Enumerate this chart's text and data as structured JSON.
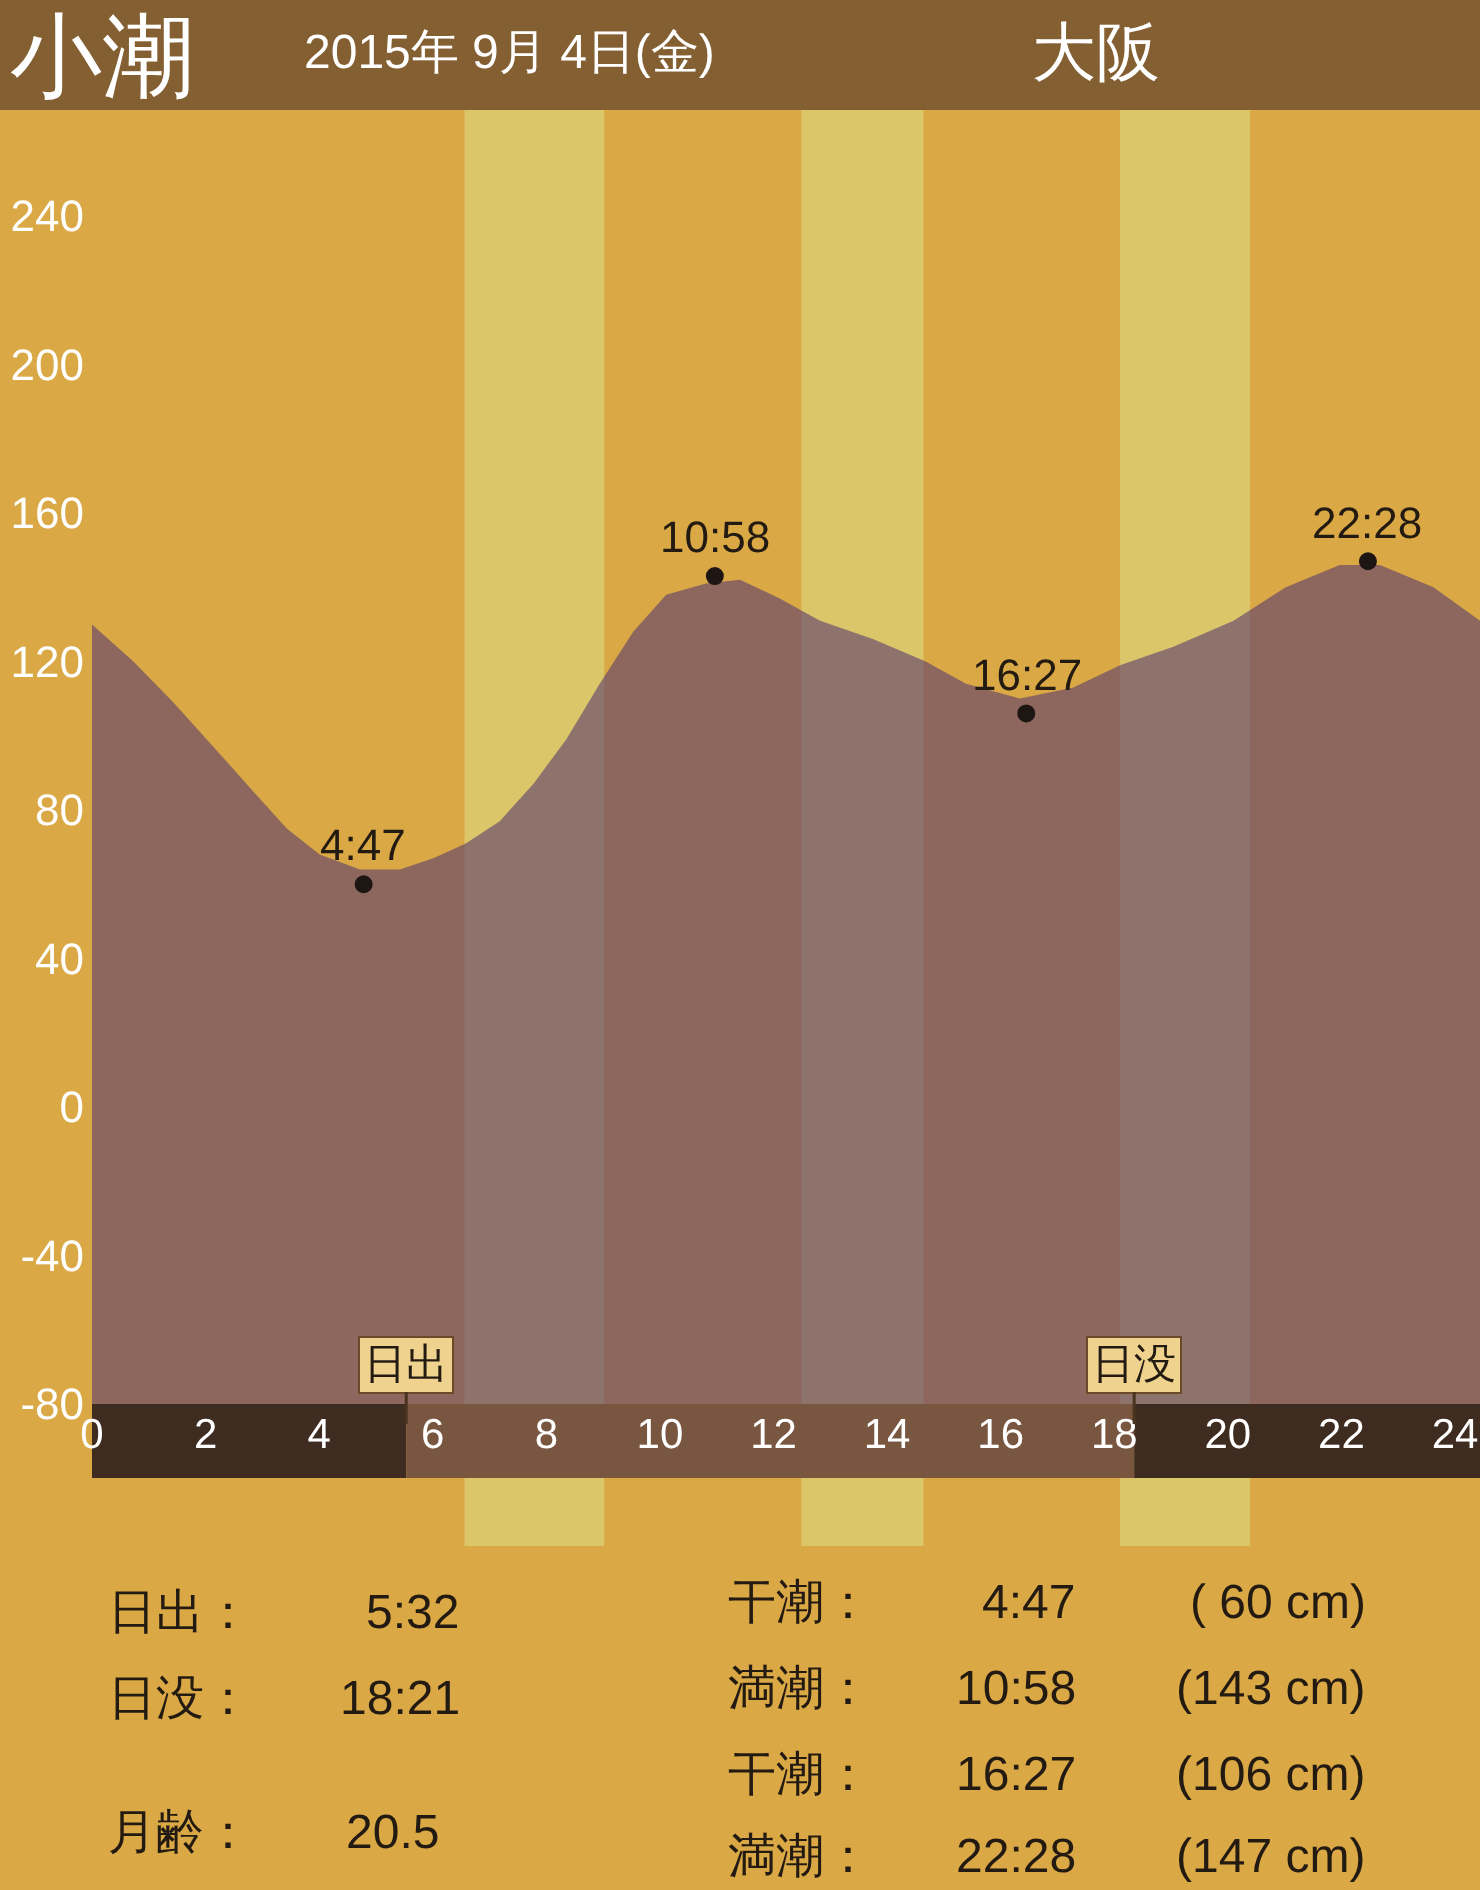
{
  "chart_data": {
    "type": "area",
    "title": "小潮",
    "subtitle": "2015年 9月 4日(金)",
    "x": [
      0,
      0.73,
      1.43,
      2.14,
      2.84,
      3.43,
      4.01,
      4.72,
      5.42,
      6.01,
      6.58,
      7.18,
      7.77,
      8.35,
      8.94,
      9.53,
      10.11,
      10.81,
      11.41,
      12.11,
      12.82,
      13.76,
      14.68,
      15.39,
      16.34,
      17.28,
      18.1,
      19.04,
      20.1,
      21.02,
      21.97,
      22.68,
      23.62,
      24.44
    ],
    "series": [
      {
        "color": "#5a3c6e",
        "values": [
          130,
          120,
          109,
          97,
          85,
          75,
          68,
          64,
          64,
          67,
          71,
          77,
          87,
          99,
          114,
          128,
          138,
          141,
          142,
          137,
          131,
          126,
          120,
          114,
          110,
          113,
          119,
          124,
          131,
          140,
          146,
          146,
          140,
          131
        ]
      },
      {
        "type": "scatter",
        "color": "#1e1612",
        "marker": "circle",
        "x": [
          4.783,
          10.967,
          16.45,
          22.467
        ],
        "values": [
          60,
          143,
          106,
          147
        ]
      }
    ],
    "xlim": [
      0,
      24.44
    ],
    "xticks": [
      0,
      2,
      4,
      6,
      8,
      10,
      12,
      14,
      16,
      18,
      20,
      22,
      24
    ],
    "ylim": [
      -80,
      240
    ],
    "yticks": [
      -80,
      -40,
      0,
      40,
      80,
      120,
      160,
      200,
      240
    ],
    "bands": [
      {
        "axis": "x",
        "from": 6.56,
        "to": 9.02,
        "color": "#dcc66a"
      },
      {
        "axis": "x",
        "from": 12.49,
        "to": 14.64,
        "color": "#dcc66a"
      },
      {
        "axis": "x",
        "from": 18.1,
        "to": 20.39,
        "color": "#dcc66a"
      },
      {
        "axis": "y",
        "from": -80,
        "to": 0,
        "color": "#5a3c6e"
      }
    ],
    "ref_lines": [
      {
        "axis": "x",
        "value": 5.533,
        "label": "日出"
      },
      {
        "axis": "x",
        "value": 18.35,
        "label": "日没"
      }
    ],
    "annotations": [
      "大阪",
      "日出：",
      "5:32",
      "日没：",
      "18:21",
      "月齢：",
      "20.5",
      "干潮：",
      "4:47",
      "( 60 cm)",
      "満潮：",
      "10:58",
      "(143 cm)",
      "干潮：",
      "16:27",
      "(106 cm)",
      "満潮：",
      "22:28",
      "(147 cm)",
      {
        "text": "4:47",
        "x": 4.783,
        "y": 60
      },
      {
        "text": "10:58",
        "x": 10.967,
        "y": 143
      },
      {
        "text": "16:27",
        "x": 16.45,
        "y": 106
      },
      {
        "text": "22:28",
        "x": 22.467,
        "y": 147
      }
    ]
  }
}
